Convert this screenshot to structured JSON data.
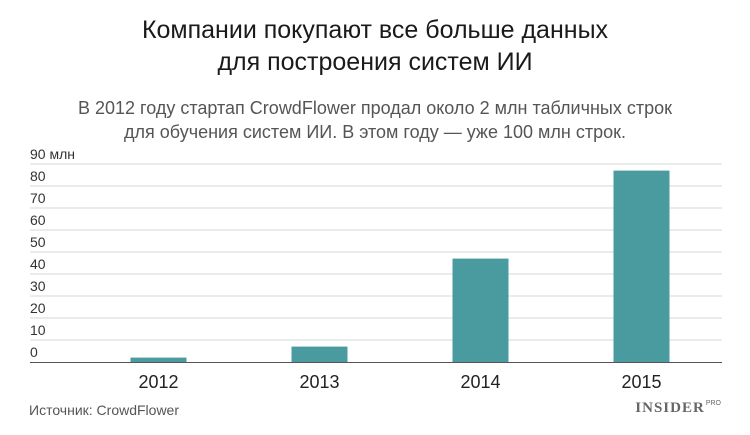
{
  "chart_data": {
    "type": "bar",
    "title_line1": "Компании покупают все больше данных",
    "title_line2": "для построения систем ИИ",
    "subtitle_line1": "В 2012 году стартап CrowdFlower продал около 2 млн табличных строк",
    "subtitle_line2": "для обучения систем ИИ. В этом году — уже 100 млн строк.",
    "categories": [
      "2012",
      "2013",
      "2014",
      "2015"
    ],
    "values": [
      2,
      7,
      47,
      87
    ],
    "yticks": [
      "0",
      "10",
      "20",
      "30",
      "40",
      "50",
      "60",
      "70",
      "80",
      "90 млн"
    ],
    "ylim": [
      0,
      90
    ],
    "grid": true,
    "bar_color": "#4a9ba0",
    "xlabel": "",
    "ylabel": ""
  },
  "source": "Источник: CrowdFlower",
  "logo": {
    "text": "INSIDER",
    "sup": "PRO"
  }
}
